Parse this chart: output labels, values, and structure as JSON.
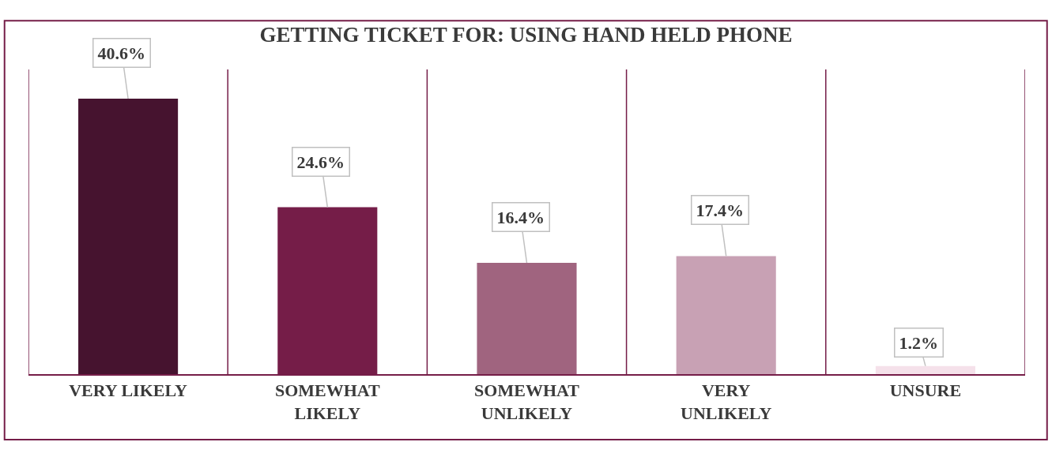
{
  "chart_data": {
    "type": "bar",
    "title": "GETTING TICKET FOR: USING HAND HELD PHONE",
    "categories": [
      "VERY LIKELY",
      "SOMEWHAT LIKELY",
      "SOMEWHAT UNLIKELY",
      "VERY UNLIKELY",
      "UNSURE"
    ],
    "values": [
      40.6,
      24.6,
      16.4,
      17.4,
      1.2
    ],
    "value_labels": [
      "40.6%",
      "24.6%",
      "16.4%",
      "17.4%",
      "1.2%"
    ],
    "colors": [
      "#46132f",
      "#751d48",
      "#a0647f",
      "#c8a1b4",
      "#f5e1ea"
    ],
    "grid": "x",
    "tick_labels": "x",
    "legend": false
  }
}
